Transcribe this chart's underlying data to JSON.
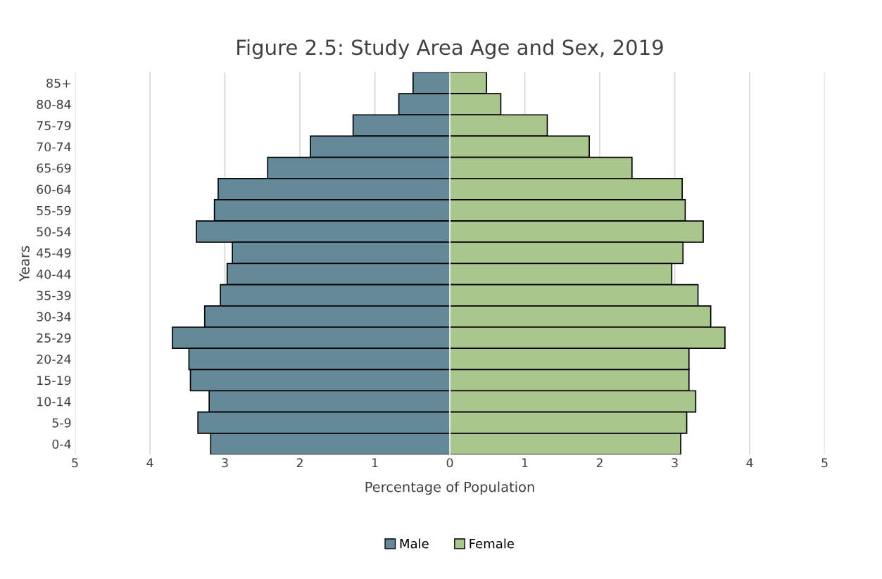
{
  "chart_data": {
    "type": "bar",
    "orientation": "horizontal",
    "title": "Figure 2.5: Study Area Age and Sex, 2019",
    "xlabel": "Percentage of Population",
    "ylabel": "Years",
    "categories": [
      "85+",
      "80-84",
      "75-79",
      "70-74",
      "65-69",
      "60-64",
      "55-59",
      "50-54",
      "45-49",
      "40-44",
      "35-39",
      "30-34",
      "25-29",
      "20-24",
      "15-19",
      "10-14",
      "5-9",
      "0-4"
    ],
    "series": [
      {
        "name": "Male",
        "color": "#648a99",
        "values": [
          -0.49,
          -0.68,
          -1.29,
          -1.86,
          -2.43,
          -3.09,
          -3.14,
          -3.38,
          -2.9,
          -2.97,
          -3.06,
          -3.27,
          -3.7,
          -3.48,
          -3.46,
          -3.21,
          -3.36,
          -3.19
        ]
      },
      {
        "name": "Female",
        "color": "#a9c68c",
        "values": [
          0.49,
          0.68,
          1.3,
          1.86,
          2.43,
          3.1,
          3.14,
          3.38,
          3.11,
          2.96,
          3.31,
          3.48,
          3.67,
          3.19,
          3.19,
          3.28,
          3.16,
          3.08
        ]
      }
    ],
    "xlim": [
      -5,
      5
    ],
    "xticks": [
      {
        "value": -5,
        "label": "5"
      },
      {
        "value": -4,
        "label": "4"
      },
      {
        "value": -3,
        "label": "3"
      },
      {
        "value": -2,
        "label": "2"
      },
      {
        "value": -1,
        "label": "1"
      },
      0,
      1,
      2,
      3,
      4,
      5
    ],
    "grid": "x",
    "legend": "bottom",
    "stacked": true
  }
}
